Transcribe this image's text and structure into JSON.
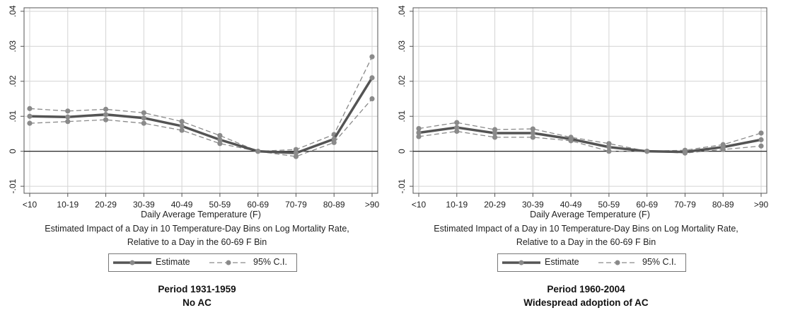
{
  "chart_data": [
    {
      "type": "line",
      "categories": [
        "<10",
        "10-19",
        "20-29",
        "30-39",
        "40-49",
        "50-59",
        "60-69",
        "70-79",
        "80-89",
        ">90"
      ],
      "series": [
        {
          "name": "Estimate",
          "values": [
            0.01,
            0.0098,
            0.0105,
            0.0095,
            0.0072,
            0.0033,
            0.0,
            -0.0005,
            0.0035,
            0.021
          ],
          "color": "#555555"
        },
        {
          "name": "95% C.I.",
          "values": [
            0.0122,
            0.0115,
            0.012,
            0.011,
            0.0085,
            0.0045,
            0.0,
            0.0005,
            0.0048,
            0.027
          ],
          "color": "#8a8a8a"
        },
        {
          "name": "95% C.I.",
          "values": [
            0.008,
            0.0085,
            0.009,
            0.008,
            0.006,
            0.0022,
            0.0,
            -0.0015,
            0.0025,
            0.015
          ],
          "color": "#8a8a8a"
        }
      ],
      "yticks": [
        ".04",
        ".03",
        ".02",
        ".01",
        "0",
        "-.01"
      ],
      "ylim": [
        -0.012,
        0.041
      ],
      "grid": true,
      "xlabel": "Daily Average Temperature (F)",
      "caption_line1": "Estimated Impact of a Day in 10 Temperature-Day Bins on Log Mortality Rate,",
      "caption_line2": "Relative to a Day in the 60-69 F Bin",
      "legend": {
        "estimate": "Estimate",
        "ci": "95% C.I."
      },
      "title_line1": "Period 1931-1959",
      "title_line2": "No AC"
    },
    {
      "type": "line",
      "categories": [
        "<10",
        "10-19",
        "20-29",
        "30-39",
        "40-49",
        "50-59",
        "60-69",
        "70-79",
        "80-89",
        ">90"
      ],
      "series": [
        {
          "name": "Estimate",
          "values": [
            0.0053,
            0.0068,
            0.0052,
            0.0052,
            0.0035,
            0.0012,
            0.0,
            -0.0002,
            0.0012,
            0.0033
          ],
          "color": "#555555"
        },
        {
          "name": "95% C.I.",
          "values": [
            0.0065,
            0.0082,
            0.0062,
            0.0064,
            0.004,
            0.0022,
            0.0,
            0.0003,
            0.0019,
            0.0052
          ],
          "color": "#8a8a8a"
        },
        {
          "name": "95% C.I.",
          "values": [
            0.0042,
            0.0057,
            0.004,
            0.004,
            0.003,
            0.0,
            0.0,
            -0.0005,
            0.0005,
            0.0015
          ],
          "color": "#8a8a8a"
        }
      ],
      "yticks": [
        ".04",
        ".03",
        ".02",
        ".01",
        "0",
        "-.01"
      ],
      "ylim": [
        -0.012,
        0.041
      ],
      "grid": true,
      "xlabel": "Daily Average Temperature (F)",
      "caption_line1": "Estimated Impact of a Day in 10 Temperature-Day Bins on Log Mortality Rate,",
      "caption_line2": "Relative to a Day in the 60-69 F Bin",
      "legend": {
        "estimate": "Estimate",
        "ci": "95% C.I."
      },
      "title_line1": "Period 1960-2004",
      "title_line2": "Widespread adoption of AC"
    }
  ]
}
